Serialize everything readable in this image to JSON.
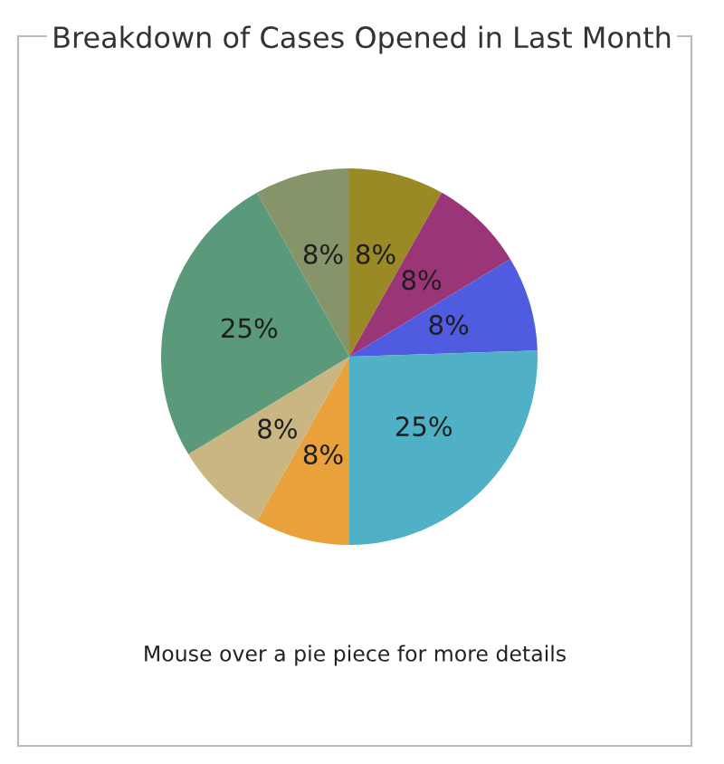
{
  "chart_data": {
    "type": "pie",
    "title": "Breakdown of Cases Opened in Last Month",
    "categories": [
      null,
      null,
      null,
      null,
      null,
      null,
      null,
      null
    ],
    "values": [
      8,
      8,
      8,
      25,
      8,
      8,
      25,
      8
    ],
    "value_labels": [
      "8%",
      "8%",
      "8%",
      "25%",
      "8%",
      "8%",
      "25%",
      "8%"
    ],
    "colors": [
      "#9a8a25",
      "#9a3577",
      "#4f5ce0",
      "#4fb0c6",
      "#e9a23b",
      "#c9b682",
      "#5a9a7a",
      "#86946a"
    ],
    "annotations": [
      "Mouse over a pie piece for more details"
    ]
  }
}
